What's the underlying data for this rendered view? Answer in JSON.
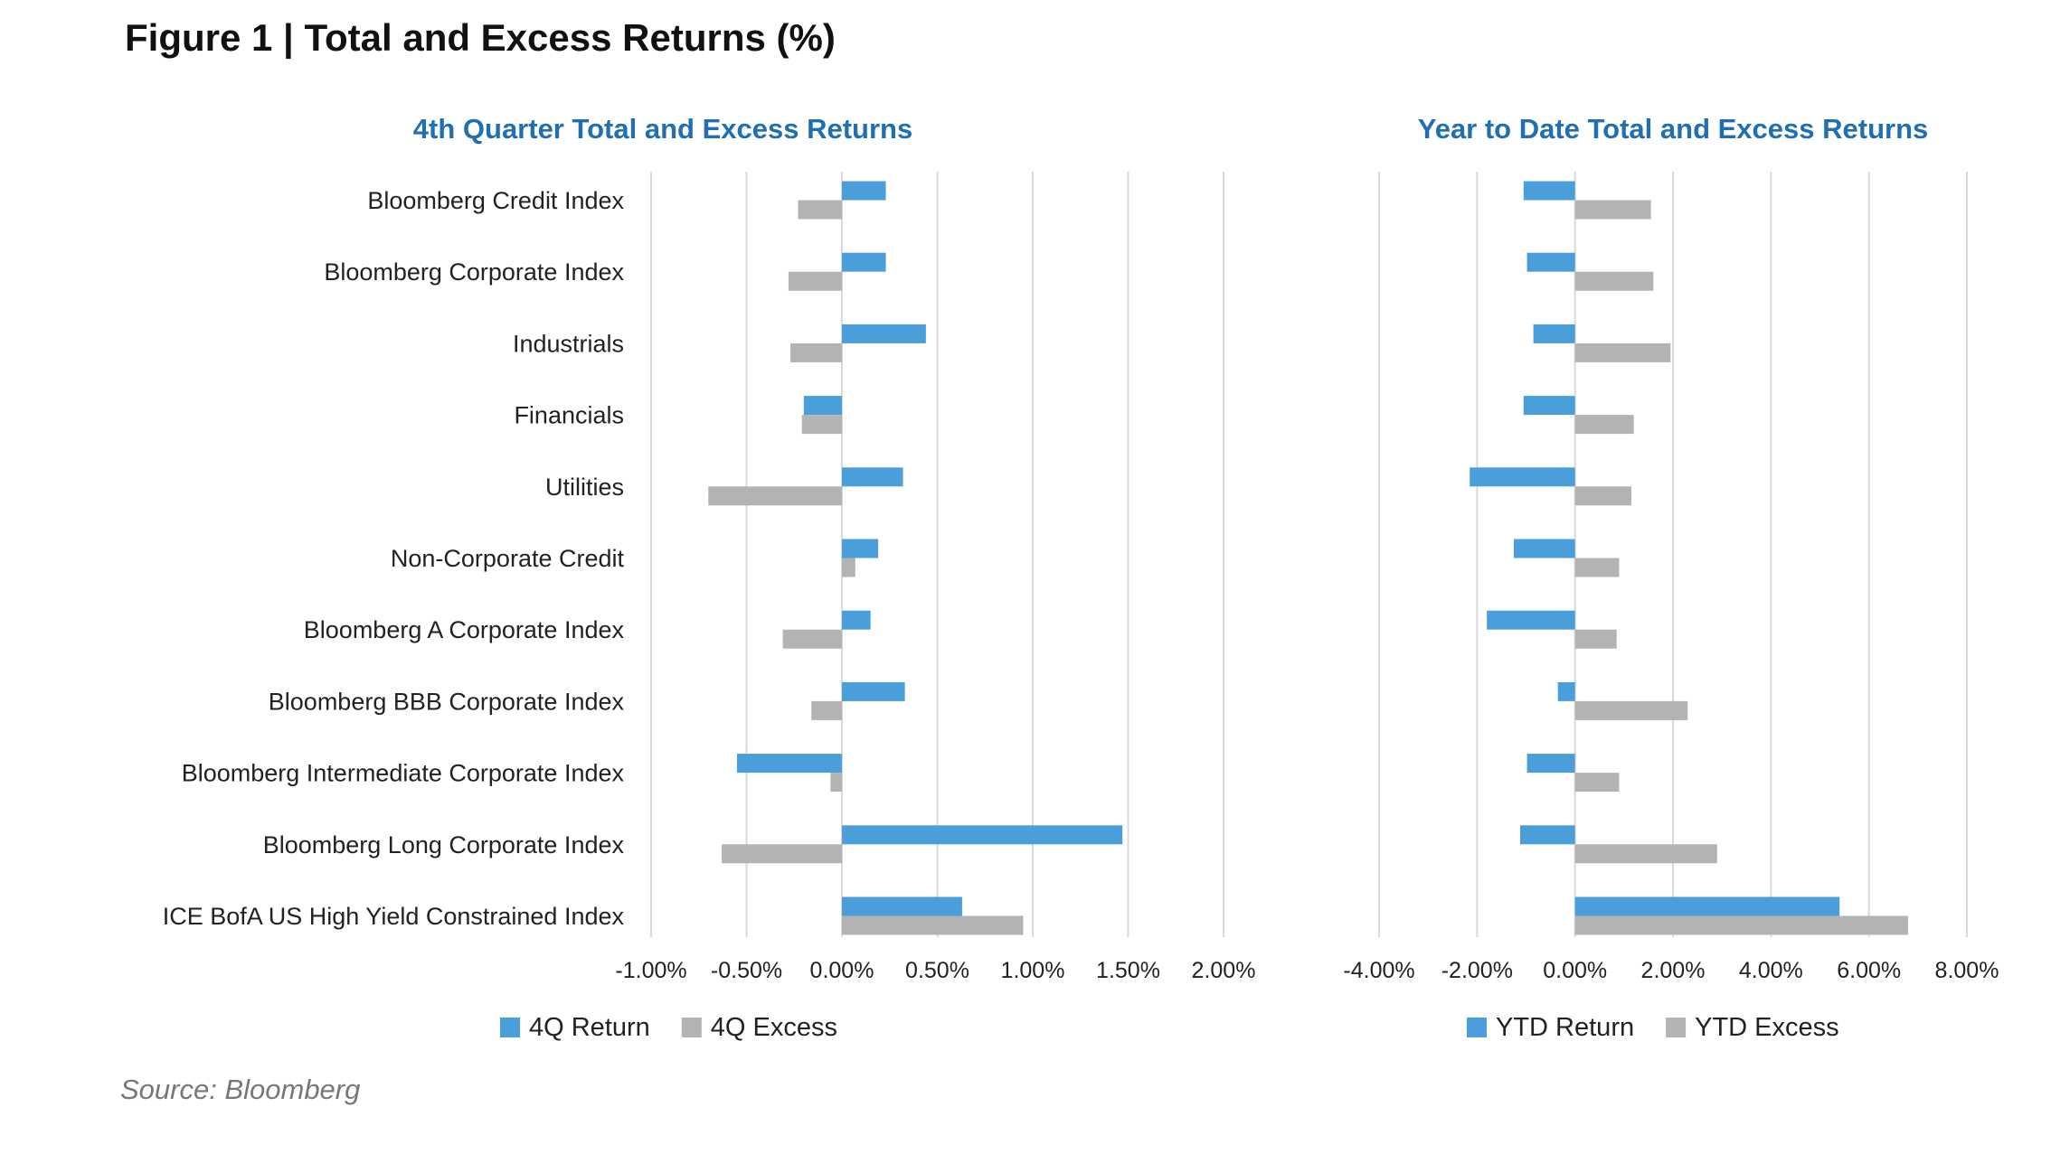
{
  "figure_title": "Figure 1 | Total and Excess Returns (%)",
  "source": "Source: Bloomberg",
  "colors": {
    "return": "#4a9fdb",
    "excess": "#b3b3b3",
    "title": "#1f6fb2",
    "grid": "#d9d9d9"
  },
  "chart_data": [
    {
      "type": "bar",
      "orientation": "horizontal",
      "title": "4th Quarter Total and Excess Returns",
      "categories": [
        "Bloomberg Credit Index",
        "Bloomberg Corporate Index",
        "Industrials",
        "Financials",
        "Utilities",
        "Non-Corporate Credit",
        "Bloomberg A Corporate Index",
        "Bloomberg BBB Corporate Index",
        "Bloomberg Intermediate Corporate Index",
        "Bloomberg Long Corporate Index",
        "ICE BofA US High Yield Constrained Index"
      ],
      "series": [
        {
          "name": "4Q Return",
          "color": "#4a9fdb",
          "values": [
            0.23,
            0.23,
            0.44,
            -0.2,
            0.32,
            0.19,
            0.15,
            0.33,
            -0.55,
            1.47,
            0.63
          ]
        },
        {
          "name": "4Q Excess",
          "color": "#b3b3b3",
          "values": [
            -0.23,
            -0.28,
            -0.27,
            -0.21,
            -0.7,
            0.07,
            -0.31,
            -0.16,
            -0.06,
            -0.63,
            0.95
          ]
        }
      ],
      "xlim": [
        -1.0,
        2.0
      ],
      "xticks": [
        "-1.00%",
        "-0.50%",
        "0.00%",
        "0.50%",
        "1.00%",
        "1.50%",
        "2.00%"
      ],
      "grid": true,
      "legend_position": "bottom"
    },
    {
      "type": "bar",
      "orientation": "horizontal",
      "title": "Year to Date Total and Excess Returns",
      "categories": [
        "Bloomberg Credit Index",
        "Bloomberg Corporate Index",
        "Industrials",
        "Financials",
        "Utilities",
        "Non-Corporate Credit",
        "Bloomberg A Corporate Index",
        "Bloomberg BBB Corporate Index",
        "Bloomberg Intermediate Corporate Index",
        "Bloomberg Long Corporate Index",
        "ICE BofA US High Yield Constrained Index"
      ],
      "series": [
        {
          "name": "YTD Return",
          "color": "#4a9fdb",
          "values": [
            -1.05,
            -0.98,
            -0.85,
            -1.05,
            -2.15,
            -1.25,
            -1.8,
            -0.35,
            -0.98,
            -1.12,
            5.4
          ]
        },
        {
          "name": "YTD Excess",
          "color": "#b3b3b3",
          "values": [
            1.55,
            1.6,
            1.95,
            1.2,
            1.15,
            0.9,
            0.85,
            2.3,
            0.9,
            2.9,
            6.8
          ]
        }
      ],
      "xlim": [
        -4.0,
        8.0
      ],
      "xticks": [
        "-4.00%",
        "-2.00%",
        "0.00%",
        "2.00%",
        "4.00%",
        "6.00%",
        "8.00%"
      ],
      "grid": true,
      "legend_position": "bottom"
    }
  ]
}
